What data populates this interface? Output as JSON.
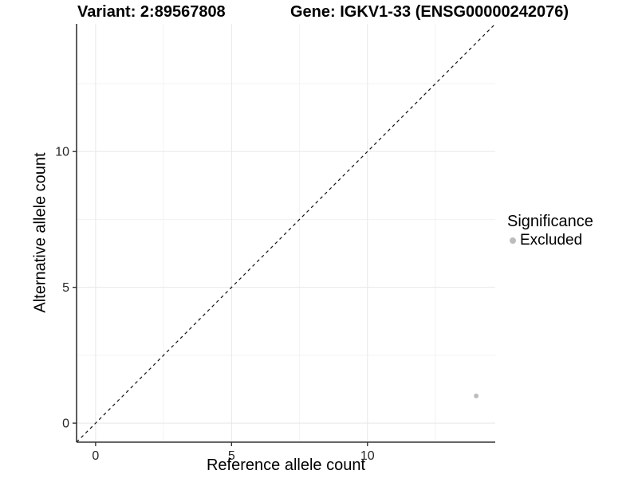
{
  "chart_data": {
    "type": "scatter",
    "title_left": "Variant: 2:89567808",
    "title_right": "Gene: IGKV1-33 (ENSG00000242076)",
    "xlabel": "Reference allele count",
    "ylabel": "Alternative allele count",
    "xlim": [
      -0.7,
      14.7
    ],
    "ylim": [
      -0.7,
      14.7
    ],
    "x_ticks": [
      0,
      5,
      10
    ],
    "y_ticks": [
      0,
      5,
      10
    ],
    "x_minor_ticks": [
      2.5,
      7.5,
      12.5
    ],
    "y_minor_ticks": [
      2.5,
      7.5,
      12.5
    ],
    "grid": true,
    "legend_position": "right",
    "reference_line": {
      "style": "dashed",
      "slope": 1,
      "intercept": 0
    },
    "series": [
      {
        "name": "Excluded",
        "color": "#bdbdbd",
        "points": [
          [
            14,
            1
          ]
        ]
      }
    ],
    "legend": {
      "title": "Significance",
      "entries": [
        {
          "label": "Excluded",
          "color": "#bdbdbd"
        }
      ]
    },
    "colors": {
      "axis": "#333333",
      "grid_major": "#e8e8e8",
      "grid_minor": "#f3f3f3",
      "tick_text": "#262626",
      "reference_line": "#111111"
    }
  }
}
